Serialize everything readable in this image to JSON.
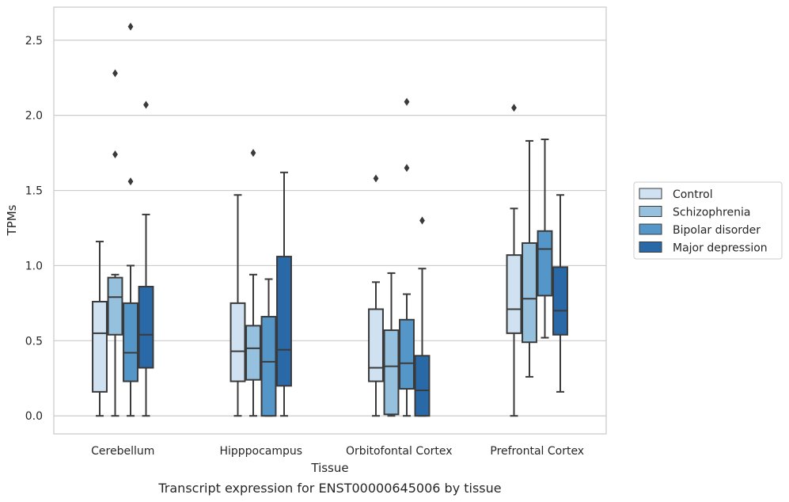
{
  "chart_data": {
    "type": "box",
    "xlabel": "Tissue",
    "ylabel": "TPMs",
    "caption": "Transcript expression for ENST00000645006 by tissue",
    "ylim": [
      -0.12,
      2.72
    ],
    "yticks": [
      "0.0",
      "0.5",
      "1.0",
      "1.5",
      "2.0",
      "2.5"
    ],
    "grid": true,
    "legend_position": "right",
    "categories": [
      "Cerebellum",
      "Hipppocampus",
      "Orbitofontal Cortex",
      "Prefrontal Cortex"
    ],
    "series": [
      {
        "name": "Control",
        "color": "#d0e1f1",
        "boxes": [
          {
            "whislo": 0.0,
            "q1": 0.16,
            "med": 0.55,
            "q3": 0.76,
            "whishi": 1.16,
            "fliers": []
          },
          {
            "whislo": 0.0,
            "q1": 0.23,
            "med": 0.43,
            "q3": 0.75,
            "whishi": 1.47,
            "fliers": []
          },
          {
            "whislo": 0.0,
            "q1": 0.23,
            "med": 0.32,
            "q3": 0.71,
            "whishi": 0.89,
            "fliers": [
              1.58
            ]
          },
          {
            "whislo": 0.0,
            "q1": 0.55,
            "med": 0.71,
            "q3": 1.07,
            "whishi": 1.38,
            "fliers": [
              2.05
            ]
          }
        ]
      },
      {
        "name": "Schizophrenia",
        "color": "#95c0de",
        "boxes": [
          {
            "whislo": 0.0,
            "q1": 0.54,
            "med": 0.79,
            "q3": 0.92,
            "whishi": 0.94,
            "fliers": [
              1.74,
              2.28
            ]
          },
          {
            "whislo": 0.0,
            "q1": 0.24,
            "med": 0.45,
            "q3": 0.6,
            "whishi": 0.94,
            "fliers": [
              1.75
            ]
          },
          {
            "whislo": 0.0,
            "q1": 0.01,
            "med": 0.33,
            "q3": 0.57,
            "whishi": 0.95,
            "fliers": []
          },
          {
            "whislo": 0.26,
            "q1": 0.49,
            "med": 0.78,
            "q3": 1.15,
            "whishi": 1.83,
            "fliers": []
          }
        ]
      },
      {
        "name": "Bipolar disorder",
        "color": "#5496c8",
        "boxes": [
          {
            "whislo": 0.0,
            "q1": 0.23,
            "med": 0.42,
            "q3": 0.75,
            "whishi": 1.0,
            "fliers": [
              1.56,
              2.59
            ]
          },
          {
            "whislo": 0.0,
            "q1": 0.0,
            "med": 0.36,
            "q3": 0.66,
            "whishi": 0.91,
            "fliers": []
          },
          {
            "whislo": 0.0,
            "q1": 0.18,
            "med": 0.35,
            "q3": 0.64,
            "whishi": 0.81,
            "fliers": [
              1.65,
              2.09
            ]
          },
          {
            "whislo": 0.52,
            "q1": 0.8,
            "med": 1.11,
            "q3": 1.23,
            "whishi": 1.84,
            "fliers": []
          }
        ]
      },
      {
        "name": "Major depression",
        "color": "#2a69a8",
        "boxes": [
          {
            "whislo": 0.0,
            "q1": 0.32,
            "med": 0.54,
            "q3": 0.86,
            "whishi": 1.34,
            "fliers": [
              2.07
            ]
          },
          {
            "whislo": 0.0,
            "q1": 0.2,
            "med": 0.44,
            "q3": 1.06,
            "whishi": 1.62,
            "fliers": []
          },
          {
            "whislo": 0.0,
            "q1": 0.0,
            "med": 0.17,
            "q3": 0.4,
            "whishi": 0.98,
            "fliers": [
              1.3
            ]
          },
          {
            "whislo": 0.16,
            "q1": 0.54,
            "med": 0.7,
            "q3": 0.99,
            "whishi": 1.47,
            "fliers": []
          }
        ]
      }
    ]
  }
}
